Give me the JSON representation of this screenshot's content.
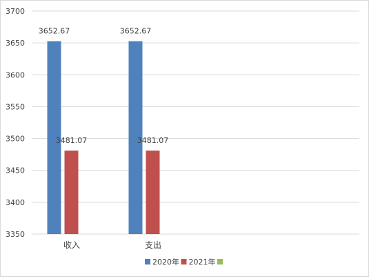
{
  "chart_data": {
    "type": "bar",
    "categories": [
      "收入",
      "支出"
    ],
    "series": [
      {
        "name": "2020年",
        "values": [
          3652.67,
          3652.67
        ],
        "color": "#4f81bd"
      },
      {
        "name": "2021年",
        "values": [
          3481.07,
          3481.07
        ],
        "color": "#c0504d"
      },
      {
        "name": "",
        "values": [
          null,
          null
        ],
        "color": "#9bbb59"
      }
    ],
    "data_labels": [
      [
        "3652.67",
        "3652.67"
      ],
      [
        "3481.07",
        "3481.07"
      ],
      [
        "",
        ""
      ]
    ],
    "ylim": [
      3350,
      3700
    ],
    "yticks": [
      3350,
      3400,
      3450,
      3500,
      3550,
      3600,
      3650,
      3700
    ],
    "grid": true,
    "legend": "bottom"
  }
}
